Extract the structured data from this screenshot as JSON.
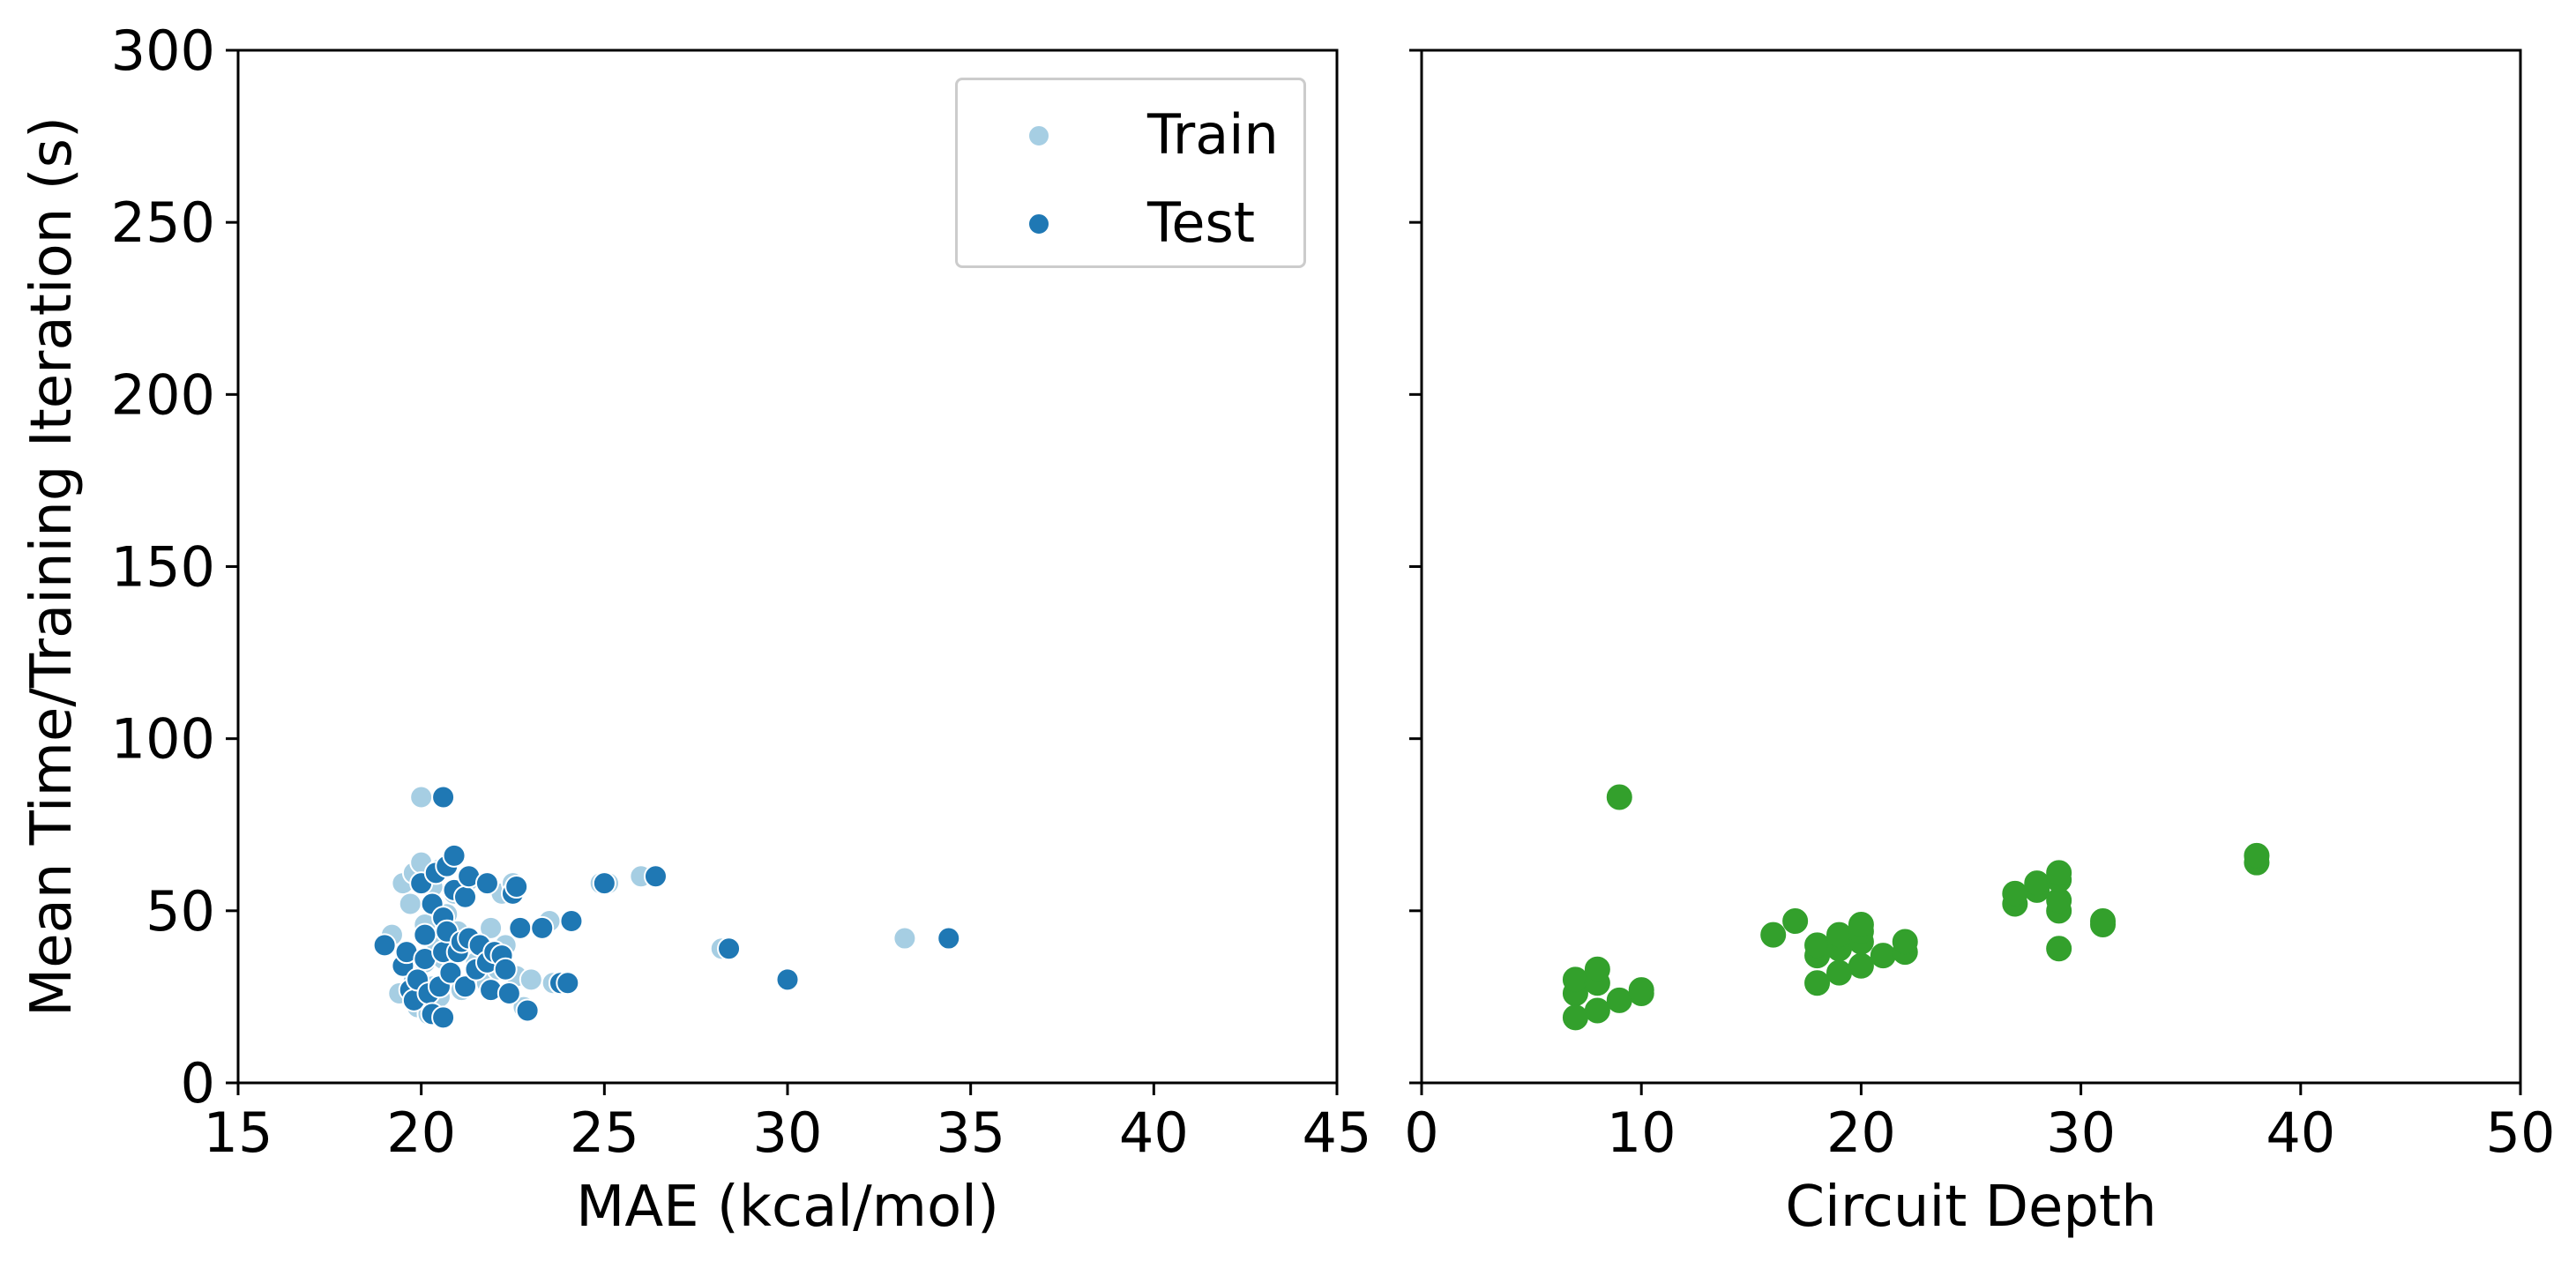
{
  "chart_data": [
    {
      "type": "scatter",
      "title": "",
      "xlabel": "MAE (kcal/mol)",
      "ylabel": "Mean Time/Training Iteration (s)",
      "xlim": [
        15,
        45
      ],
      "ylim": [
        0,
        300
      ],
      "xticks": [
        "15",
        "20",
        "25",
        "30",
        "35",
        "40",
        "45"
      ],
      "yticks": [
        "0",
        "50",
        "100",
        "150",
        "200",
        "250",
        "300"
      ],
      "legend": "top-right",
      "series": [
        {
          "name": "Train",
          "color": "#a6cee3",
          "points": [
            [
              19.0,
              40
            ],
            [
              19.2,
              43
            ],
            [
              19.4,
              26
            ],
            [
              19.5,
              58
            ],
            [
              19.6,
              38
            ],
            [
              19.7,
              52
            ],
            [
              19.8,
              61
            ],
            [
              19.8,
              30
            ],
            [
              19.9,
              22
            ],
            [
              20.0,
              83
            ],
            [
              20.0,
              64
            ],
            [
              20.1,
              35
            ],
            [
              20.1,
              46
            ],
            [
              20.2,
              20
            ],
            [
              20.3,
              57
            ],
            [
              20.3,
              28
            ],
            [
              20.4,
              41
            ],
            [
              20.5,
              62
            ],
            [
              20.5,
              25
            ],
            [
              20.6,
              36
            ],
            [
              20.7,
              49
            ],
            [
              20.8,
              32
            ],
            [
              20.9,
              55
            ],
            [
              21.0,
              44
            ],
            [
              21.1,
              27
            ],
            [
              21.2,
              38
            ],
            [
              21.3,
              59
            ],
            [
              21.5,
              35
            ],
            [
              21.6,
              40
            ],
            [
              21.8,
              29
            ],
            [
              21.9,
              45
            ],
            [
              22.0,
              37
            ],
            [
              22.1,
              33
            ],
            [
              22.2,
              55
            ],
            [
              22.3,
              40
            ],
            [
              22.5,
              58
            ],
            [
              22.6,
              31
            ],
            [
              22.8,
              22
            ],
            [
              23.0,
              30
            ],
            [
              23.3,
              45
            ],
            [
              23.5,
              47
            ],
            [
              23.6,
              29
            ],
            [
              23.8,
              29
            ],
            [
              24.9,
              58
            ],
            [
              25.1,
              58
            ],
            [
              26.0,
              60
            ],
            [
              28.2,
              39
            ],
            [
              33.2,
              42
            ]
          ]
        },
        {
          "name": "Test",
          "color": "#1f78b4",
          "points": [
            [
              19.0,
              40
            ],
            [
              19.5,
              34
            ],
            [
              19.6,
              38
            ],
            [
              19.7,
              27
            ],
            [
              19.8,
              24
            ],
            [
              19.9,
              30
            ],
            [
              20.0,
              58
            ],
            [
              20.1,
              43
            ],
            [
              20.1,
              36
            ],
            [
              20.2,
              26
            ],
            [
              20.3,
              20
            ],
            [
              20.3,
              52
            ],
            [
              20.4,
              61
            ],
            [
              20.5,
              28
            ],
            [
              20.6,
              48
            ],
            [
              20.6,
              83
            ],
            [
              20.6,
              19
            ],
            [
              20.6,
              38
            ],
            [
              20.7,
              63
            ],
            [
              20.7,
              44
            ],
            [
              20.8,
              32
            ],
            [
              20.9,
              66
            ],
            [
              20.9,
              56
            ],
            [
              21.0,
              38
            ],
            [
              21.1,
              41
            ],
            [
              21.2,
              54
            ],
            [
              21.2,
              28
            ],
            [
              21.3,
              60
            ],
            [
              21.3,
              42
            ],
            [
              21.5,
              33
            ],
            [
              21.6,
              40
            ],
            [
              21.8,
              58
            ],
            [
              21.8,
              35
            ],
            [
              21.9,
              27
            ],
            [
              22.0,
              38
            ],
            [
              22.2,
              37
            ],
            [
              22.3,
              33
            ],
            [
              22.4,
              26
            ],
            [
              22.5,
              55
            ],
            [
              22.6,
              57
            ],
            [
              22.7,
              45
            ],
            [
              22.9,
              21
            ],
            [
              23.3,
              45
            ],
            [
              23.8,
              29
            ],
            [
              24.0,
              29
            ],
            [
              24.1,
              47
            ],
            [
              25.0,
              58
            ],
            [
              26.4,
              60
            ],
            [
              28.4,
              39
            ],
            [
              30.0,
              30
            ],
            [
              34.4,
              42
            ]
          ]
        }
      ]
    },
    {
      "type": "scatter",
      "title": "",
      "xlabel": "Circuit Depth",
      "ylabel": "",
      "xlim": [
        0,
        50
      ],
      "ylim": [
        0,
        300
      ],
      "xticks": [
        "0",
        "10",
        "20",
        "30",
        "40",
        "50"
      ],
      "color": "#33a02c",
      "points": [
        [
          7,
          19
        ],
        [
          7,
          26
        ],
        [
          7,
          30
        ],
        [
          8,
          21
        ],
        [
          8,
          29
        ],
        [
          8,
          33
        ],
        [
          9,
          24
        ],
        [
          9,
          83
        ],
        [
          10,
          26
        ],
        [
          10,
          27
        ],
        [
          16,
          43
        ],
        [
          17,
          47
        ],
        [
          18,
          29
        ],
        [
          18,
          37
        ],
        [
          18,
          40
        ],
        [
          19,
          32
        ],
        [
          19,
          39
        ],
        [
          19,
          42
        ],
        [
          19,
          43
        ],
        [
          20,
          34
        ],
        [
          20,
          41
        ],
        [
          20,
          44
        ],
        [
          20,
          46
        ],
        [
          21,
          37
        ],
        [
          22,
          38
        ],
        [
          22,
          41
        ],
        [
          27,
          52
        ],
        [
          27,
          55
        ],
        [
          28,
          56
        ],
        [
          28,
          58
        ],
        [
          29,
          39
        ],
        [
          29,
          50
        ],
        [
          29,
          53
        ],
        [
          29,
          59
        ],
        [
          29,
          61
        ],
        [
          31,
          46
        ],
        [
          31,
          47
        ],
        [
          38,
          64
        ],
        [
          38,
          66
        ]
      ]
    }
  ]
}
